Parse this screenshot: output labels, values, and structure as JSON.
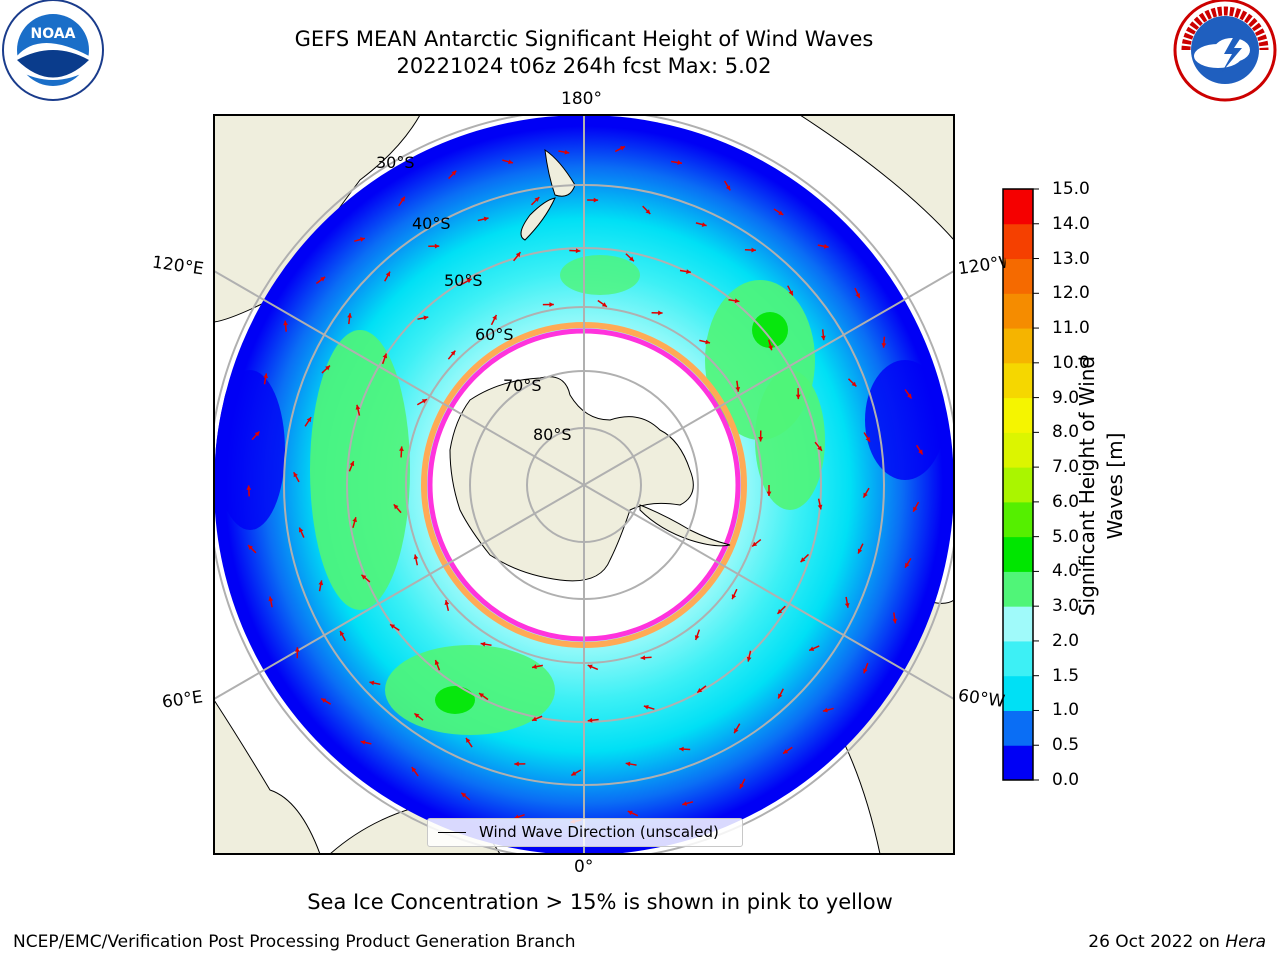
{
  "title_line1": "GEFS MEAN Antarctic Significant Height of Wind Waves",
  "title_line2": "20221024 t06z 264h fcst   Max: 5.02",
  "lon_labels": {
    "top": "180°",
    "bottom": "0°",
    "left_upper": "120°E",
    "left_lower": "60°E",
    "right_upper": "120°W",
    "right_lower": "60°W"
  },
  "lat_labels": [
    "30°S",
    "40°S",
    "50°S",
    "60°S",
    "70°S",
    "80°S"
  ],
  "colorbar": {
    "label_line1": "Significant Height of Wind",
    "label_line2": "Waves [m]",
    "ticks": [
      "0.0",
      "0.5",
      "1.0",
      "1.5",
      "2.0",
      "3.0",
      "4.0",
      "5.0",
      "6.0",
      "7.0",
      "8.0",
      "9.0",
      "10.0",
      "11.0",
      "12.0",
      "13.0",
      "14.0",
      "15.0"
    ],
    "colors": [
      "#0000f5",
      "#0a6ef5",
      "#00e0f5",
      "#3df0f5",
      "#a0fafa",
      "#50f578",
      "#00e600",
      "#55ef00",
      "#aaf500",
      "#dcf500",
      "#f5f500",
      "#f5d700",
      "#f5b400",
      "#f58c00",
      "#f56a00",
      "#f54000",
      "#f50000"
    ]
  },
  "legend_text": "Wind Wave Direction (unscaled)",
  "note": "Sea Ice Concentration > 15% is shown in pink to yellow",
  "footer_left": "NCEP/EMC/Verification Post Processing Product Generation Branch",
  "footer_right_date": "26 Oct 2022 on",
  "footer_right_machine": "Hera",
  "logos": {
    "left": "NOAA",
    "right": "National Weather Service"
  },
  "colors": {
    "land": "#efeedd",
    "ice_edge": "#ff33dd",
    "ice_outer": "#ffaa55",
    "arrow": "#e00000",
    "grid": "#b0b0b0"
  }
}
